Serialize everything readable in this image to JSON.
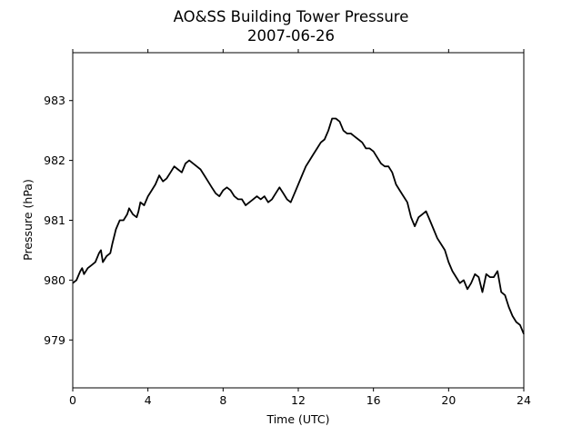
{
  "chart_data": {
    "type": "line",
    "title": "AO&SS Building Tower Pressure",
    "subtitle": "2007-06-26",
    "xlabel": "Time (UTC)",
    "ylabel": "Pressure (hPa)",
    "xlim": [
      0,
      24
    ],
    "ylim": [
      978.2,
      983.8
    ],
    "xticks": [
      0,
      4,
      8,
      12,
      16,
      20,
      24
    ],
    "yticks": [
      979,
      980,
      981,
      982,
      983
    ],
    "grid": false,
    "line_color": "#000000",
    "series": [
      {
        "x": [
          0.0,
          0.2,
          0.4,
          0.5,
          0.6,
          0.8,
          1.0,
          1.2,
          1.4,
          1.5,
          1.6,
          1.8,
          2.0,
          2.1,
          2.3,
          2.5,
          2.7,
          2.9,
          3.0,
          3.2,
          3.4,
          3.5,
          3.6,
          3.8,
          4.0,
          4.2,
          4.4,
          4.6,
          4.8,
          5.0,
          5.2,
          5.4,
          5.6,
          5.8,
          6.0,
          6.2,
          6.4,
          6.6,
          6.8,
          7.0,
          7.2,
          7.4,
          7.6,
          7.8,
          8.0,
          8.2,
          8.4,
          8.6,
          8.8,
          9.0,
          9.2,
          9.4,
          9.6,
          9.8,
          10.0,
          10.2,
          10.4,
          10.6,
          10.8,
          11.0,
          11.2,
          11.4,
          11.6,
          11.8,
          12.0,
          12.2,
          12.4,
          12.6,
          12.8,
          13.0,
          13.2,
          13.4,
          13.6,
          13.8,
          14.0,
          14.2,
          14.4,
          14.6,
          14.8,
          15.0,
          15.2,
          15.4,
          15.6,
          15.8,
          16.0,
          16.2,
          16.4,
          16.6,
          16.8,
          17.0,
          17.2,
          17.4,
          17.6,
          17.8,
          18.0,
          18.2,
          18.4,
          18.6,
          18.8,
          19.0,
          19.2,
          19.4,
          19.6,
          19.8,
          20.0,
          20.2,
          20.4,
          20.6,
          20.8,
          21.0,
          21.2,
          21.4,
          21.6,
          21.8,
          22.0,
          22.2,
          22.4,
          22.6,
          22.8,
          23.0,
          23.2,
          23.4,
          23.6,
          23.8,
          24.0
        ],
        "values": [
          979.95,
          980.0,
          980.15,
          980.2,
          980.1,
          980.2,
          980.25,
          980.3,
          980.45,
          980.5,
          980.3,
          980.4,
          980.45,
          980.6,
          980.85,
          981.0,
          981.0,
          981.1,
          981.2,
          981.1,
          981.05,
          981.15,
          981.3,
          981.25,
          981.4,
          981.5,
          981.6,
          981.75,
          981.65,
          981.7,
          981.8,
          981.9,
          981.85,
          981.8,
          981.95,
          982.0,
          981.95,
          981.9,
          981.85,
          981.75,
          981.65,
          981.55,
          981.45,
          981.4,
          981.5,
          981.55,
          981.5,
          981.4,
          981.35,
          981.35,
          981.25,
          981.3,
          981.35,
          981.4,
          981.35,
          981.4,
          981.3,
          981.35,
          981.45,
          981.55,
          981.45,
          981.35,
          981.3,
          981.45,
          981.6,
          981.75,
          981.9,
          982.0,
          982.1,
          982.2,
          982.3,
          982.35,
          982.5,
          982.7,
          982.7,
          982.65,
          982.5,
          982.45,
          982.45,
          982.4,
          982.35,
          982.3,
          982.2,
          982.2,
          982.15,
          982.05,
          981.95,
          981.9,
          981.9,
          981.8,
          981.6,
          981.5,
          981.4,
          981.3,
          981.05,
          980.9,
          981.05,
          981.1,
          981.15,
          981.0,
          980.85,
          980.7,
          980.6,
          980.5,
          980.3,
          980.15,
          980.05,
          979.95,
          980.0,
          979.85,
          979.95,
          980.1,
          980.05,
          979.8,
          980.1,
          980.05,
          980.05,
          980.15,
          979.8,
          979.75,
          979.55,
          979.4,
          979.3,
          979.25,
          979.1
        ]
      }
    ]
  }
}
